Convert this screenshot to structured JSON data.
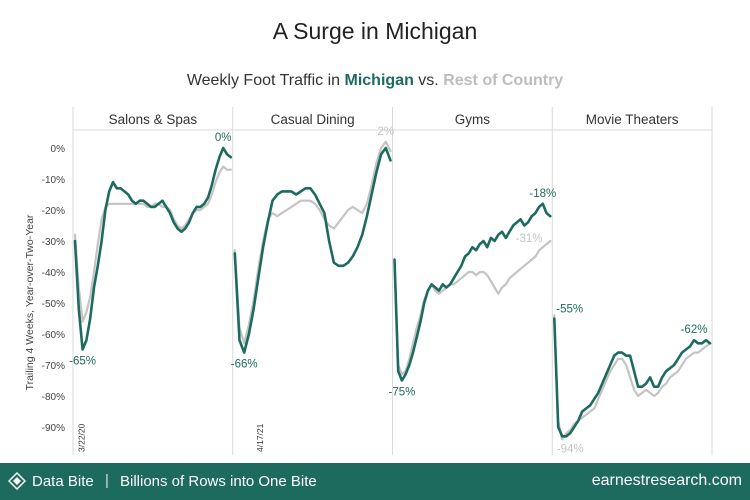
{
  "title": "A Surge in Michigan",
  "subtitle": {
    "prefix": "Weekly Foot Traffic in ",
    "highlight1": "Michigan",
    "middle": " vs. ",
    "highlight2": "Rest of Country"
  },
  "colors": {
    "michigan": "#1d6b5f",
    "rest": "#c4c4c4",
    "footer": "#1d6b5f"
  },
  "footer": {
    "brand": "Data Bite",
    "separator": "|",
    "tagline": "Billions of Rows into One Bite",
    "site": "earnestresearch.com",
    "icon": "earnest-logo-icon"
  },
  "chart_data": {
    "type": "line",
    "title": "Weekly Foot Traffic in Michigan vs. Rest of Country",
    "ylabel": "Trailing 4 Weeks, Year-over-Two-Year",
    "ylim": [
      -95,
      5
    ],
    "yticks": [
      0,
      -10,
      -20,
      -30,
      -40,
      -50,
      -60,
      -70,
      -80,
      -90
    ],
    "ytick_labels": [
      "0%",
      "-10%",
      "-20%",
      "-30%",
      "-40%",
      "-50%",
      "-60%",
      "-70%",
      "-80%",
      "-90%"
    ],
    "grid": "vertical panel dividers",
    "date_markers": [
      {
        "label": "3/22/20",
        "panel": 0,
        "index": 2
      },
      {
        "label": "4/17/21",
        "panel": 0,
        "index": 49
      }
    ],
    "panels": [
      {
        "name": "Salons & Spas",
        "series": [
          {
            "name": "Michigan",
            "values": [
              -30,
              -52,
              -65,
              -62,
              -55,
              -45,
              -38,
              -30,
              -20,
              -14,
              -11,
              -13,
              -13,
              -14,
              -15,
              -17,
              -18,
              -17,
              -17,
              -18,
              -19,
              -19,
              -18,
              -17,
              -19,
              -21,
              -24,
              -26,
              -27,
              -26,
              -24,
              -21,
              -19,
              -19,
              -18,
              -16,
              -12,
              -7,
              -3,
              0,
              -2,
              -3
            ]
          },
          {
            "name": "Rest of Country",
            "values": [
              -28,
              -45,
              -56,
              -53,
              -48,
              -40,
              -31,
              -23,
              -19,
              -18,
              -18,
              -18,
              -18,
              -18,
              -18,
              -18,
              -18,
              -18,
              -18,
              -19,
              -19,
              -18,
              -18,
              -19,
              -19,
              -20,
              -23,
              -25,
              -26,
              -25,
              -23,
              -21,
              -20,
              -20,
              -19,
              -18,
              -15,
              -11,
              -8,
              -6,
              -7,
              -7
            ]
          }
        ],
        "annotations": [
          {
            "text": "-65%",
            "series": "Michigan",
            "index": 2,
            "pos": "below"
          },
          {
            "text": "0%",
            "series": "Michigan",
            "index": 39,
            "pos": "above"
          }
        ]
      },
      {
        "name": "Casual Dining",
        "series": [
          {
            "name": "Michigan",
            "values": [
              -34,
              -62,
              -66,
              -60,
              -52,
              -42,
              -32,
              -24,
              -17,
              -15,
              -14,
              -14,
              -14,
              -15,
              -14,
              -13,
              -13,
              -15,
              -18,
              -21,
              -30,
              -37,
              -38,
              -38,
              -37,
              -35,
              -32,
              -28,
              -22,
              -15,
              -8,
              -2,
              0,
              -4
            ]
          },
          {
            "name": "Rest of Country",
            "values": [
              -33,
              -58,
              -63,
              -57,
              -49,
              -39,
              -30,
              -23,
              -21,
              -22,
              -21,
              -20,
              -19,
              -18,
              -17,
              -17,
              -17,
              -18,
              -20,
              -23,
              -25,
              -26,
              -24,
              -22,
              -20,
              -19,
              -20,
              -21,
              -18,
              -12,
              -5,
              0,
              2,
              -1
            ]
          }
        ],
        "annotations": [
          {
            "text": "-66%",
            "series": "Michigan",
            "index": 2,
            "pos": "below"
          },
          {
            "text": "2%",
            "series": "Rest of Country",
            "index": 32,
            "pos": "above"
          }
        ]
      },
      {
        "name": "Gyms",
        "series": [
          {
            "name": "Michigan",
            "values": [
              -36,
              -72,
              -75,
              -73,
              -70,
              -66,
              -61,
              -56,
              -50,
              -46,
              -44,
              -45,
              -46,
              -44,
              -45,
              -44,
              -42,
              -40,
              -38,
              -35,
              -34,
              -32,
              -33,
              -31,
              -30,
              -32,
              -29,
              -30,
              -28,
              -27,
              -29,
              -27,
              -25,
              -24,
              -23,
              -25,
              -24,
              -22,
              -21,
              -19,
              -18,
              -21,
              -22
            ]
          },
          {
            "name": "Rest of Country",
            "values": [
              -36,
              -70,
              -73,
              -72,
              -68,
              -63,
              -58,
              -54,
              -49,
              -46,
              -44,
              -46,
              -47,
              -46,
              -45,
              -44,
              -44,
              -43,
              -42,
              -41,
              -40,
              -40,
              -41,
              -40,
              -40,
              -41,
              -43,
              -45,
              -47,
              -45,
              -44,
              -42,
              -41,
              -40,
              -39,
              -38,
              -37,
              -36,
              -35,
              -33,
              -32,
              -31,
              -30
            ]
          }
        ],
        "annotations": [
          {
            "text": "-75%",
            "series": "Michigan",
            "index": 2,
            "pos": "below"
          },
          {
            "text": "-18%",
            "series": "Michigan",
            "index": 40,
            "pos": "above"
          },
          {
            "text": "-31%",
            "series": "Rest of Country",
            "index": 41,
            "pos": "left"
          }
        ]
      },
      {
        "name": "Movie Theaters",
        "series": [
          {
            "name": "Michigan",
            "values": [
              -55,
              -90,
              -93,
              -93,
              -92,
              -90,
              -88,
              -85,
              -84,
              -83,
              -81,
              -79,
              -76,
              -73,
              -70,
              -67,
              -66,
              -66,
              -67,
              -67,
              -72,
              -77,
              -77,
              -76,
              -74,
              -77,
              -77,
              -74,
              -72,
              -71,
              -70,
              -68,
              -66,
              -65,
              -64,
              -62,
              -63,
              -63,
              -62,
              -63
            ]
          },
          {
            "name": "Rest of Country",
            "values": [
              -54,
              -88,
              -94,
              -92,
              -91,
              -89,
              -88,
              -87,
              -86,
              -85,
              -84,
              -81,
              -78,
              -75,
              -72,
              -70,
              -68,
              -68,
              -70,
              -74,
              -78,
              -80,
              -79,
              -78,
              -79,
              -80,
              -79,
              -77,
              -76,
              -74,
              -73,
              -72,
              -70,
              -68,
              -67,
              -66,
              -66,
              -65,
              -64,
              -63
            ]
          }
        ],
        "annotations": [
          {
            "text": "-55%",
            "series": "Michigan",
            "index": 0,
            "pos": "right"
          },
          {
            "text": "-94%",
            "series": "Rest of Country",
            "index": 2,
            "pos": "below"
          },
          {
            "text": "-62%",
            "series": "Michigan",
            "index": 35,
            "pos": "above"
          }
        ]
      }
    ]
  }
}
